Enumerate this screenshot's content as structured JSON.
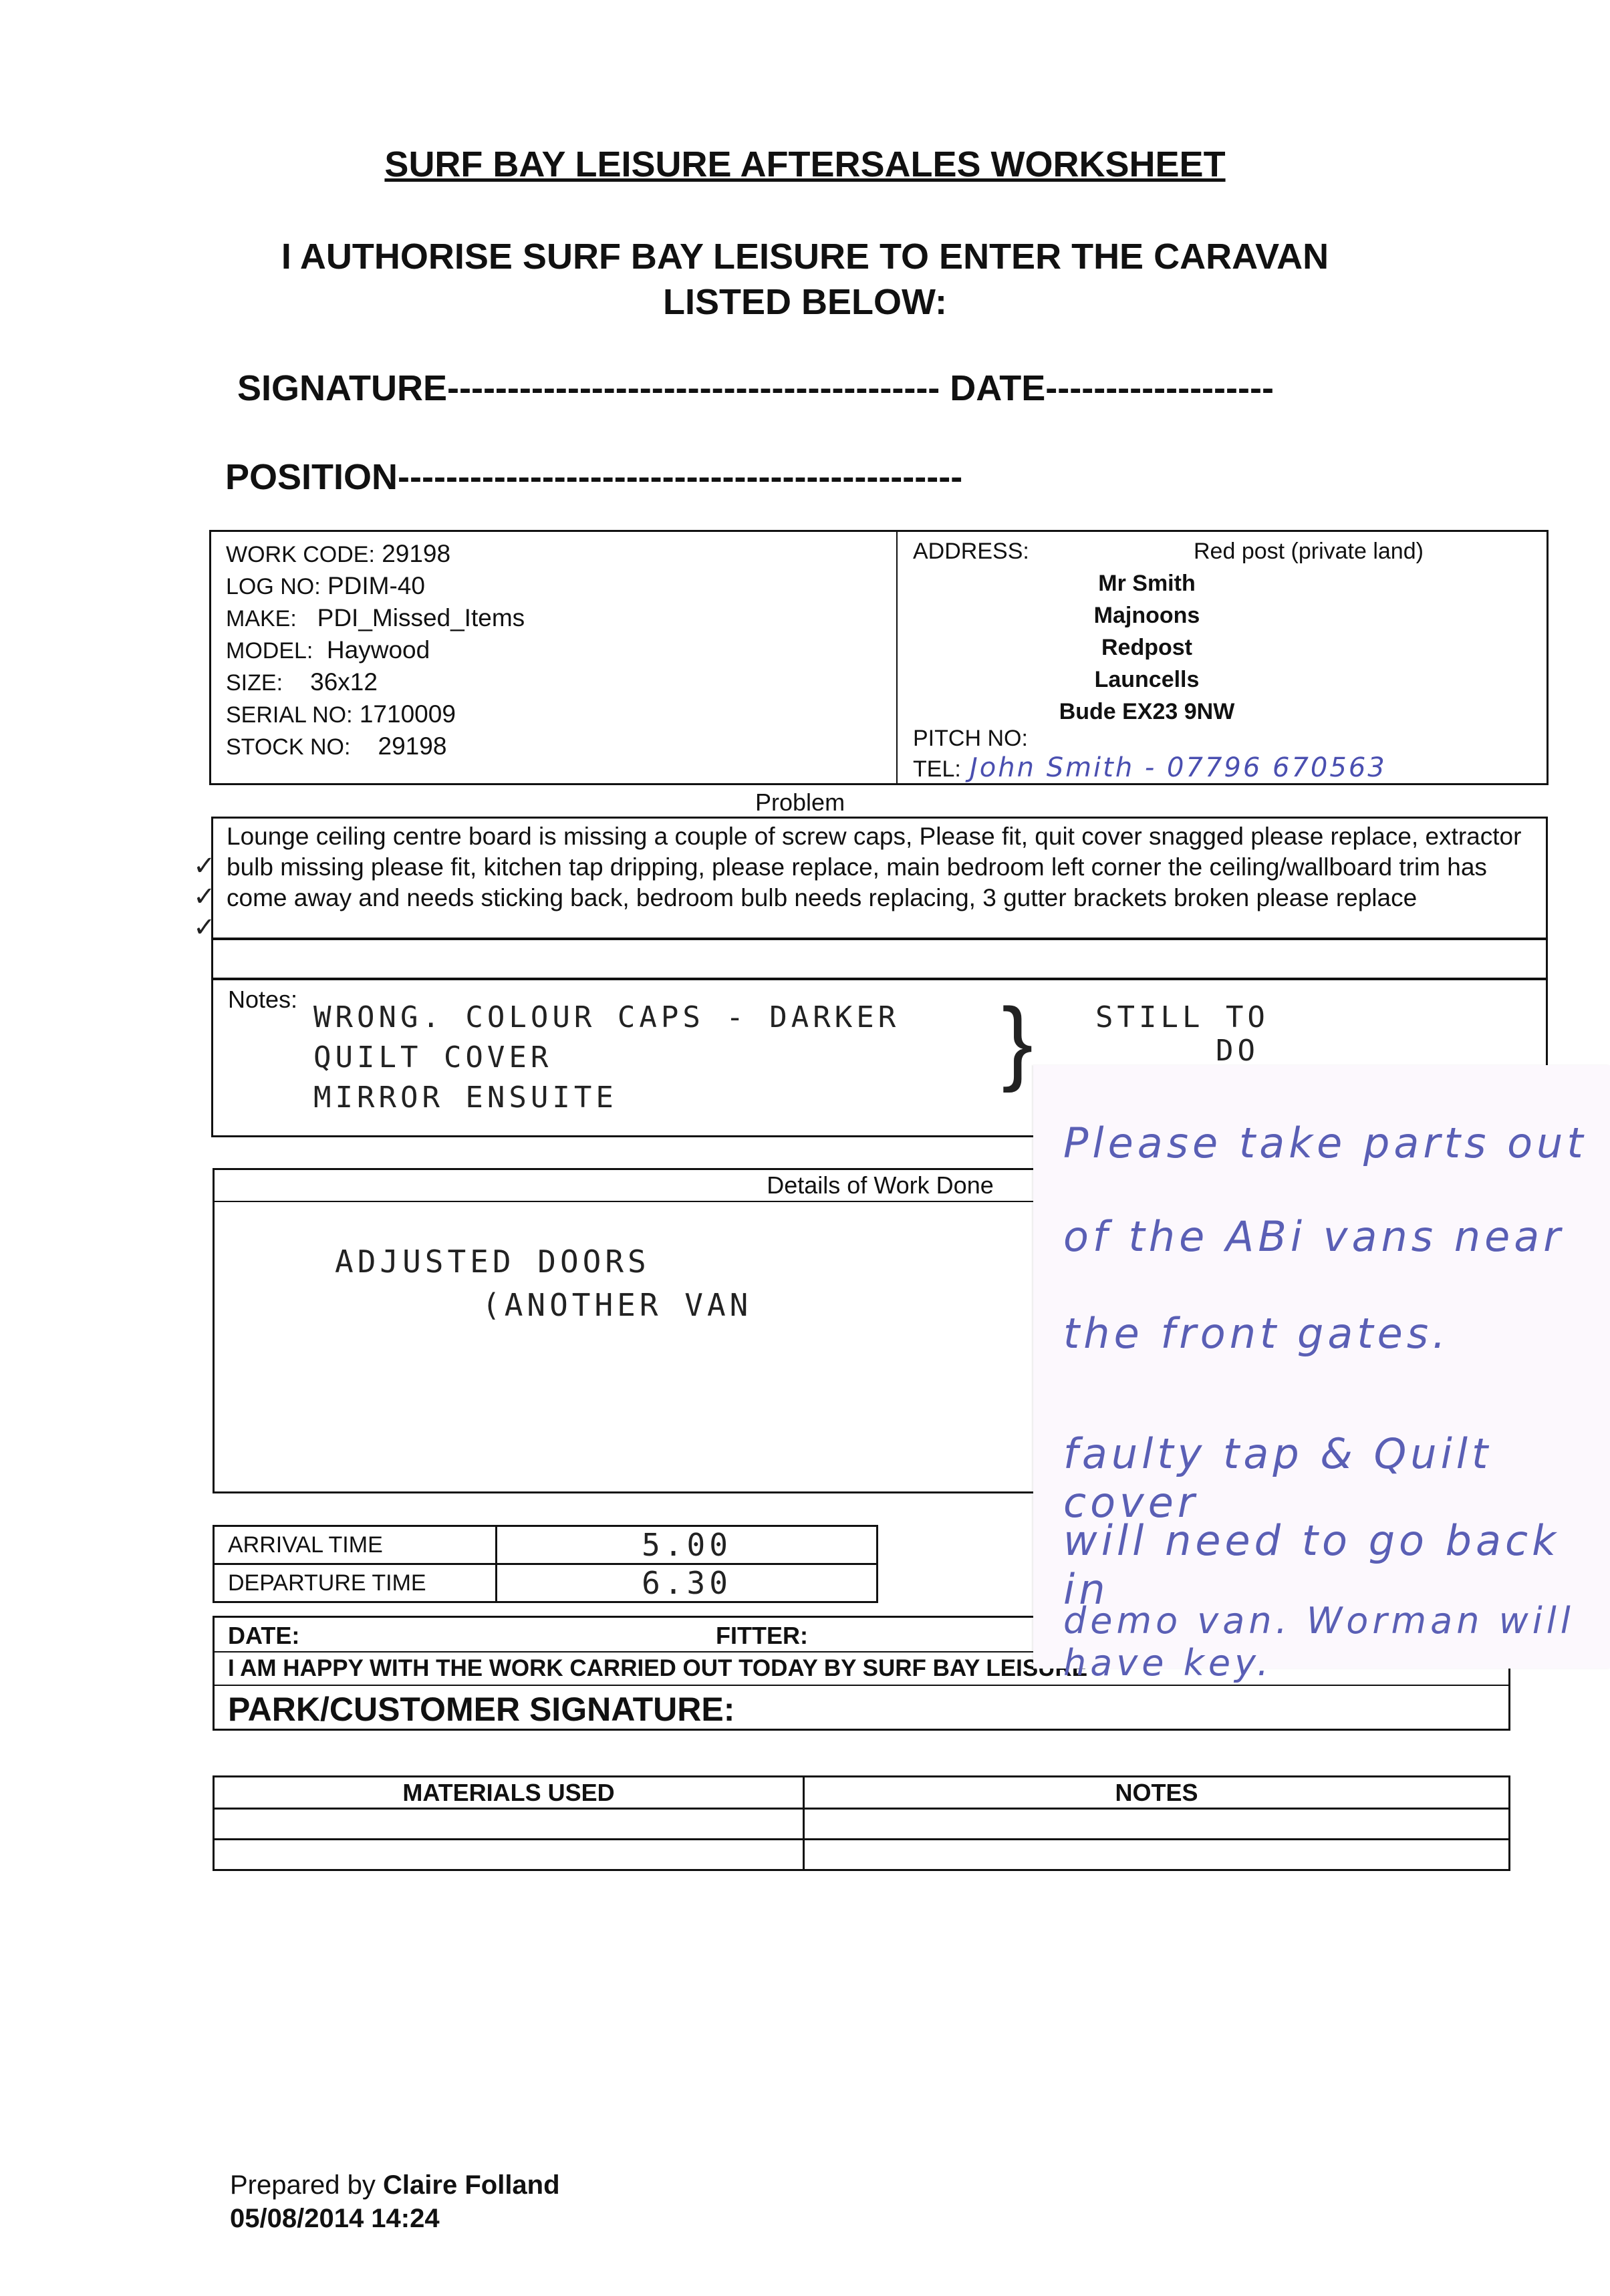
{
  "title": "SURF BAY LEISURE AFTERSALES WORKSHEET",
  "authorise": [
    "I AUTHORISE SURF BAY LEISURE TO ENTER THE CARAVAN",
    "LISTED BELOW:"
  ],
  "signature_line": "SIGNATURE----------------------------------------- DATE-------------------",
  "position_line": "POSITION-----------------------------------------------",
  "info": {
    "work_code_label": "WORK CODE:",
    "work_code": "29198",
    "log_no_label": "LOG NO:",
    "log_no": "PDIM-40",
    "make_label": "MAKE:",
    "make": "PDI_Missed_Items",
    "model_label": "MODEL:",
    "model": "Haywood",
    "size_label": "SIZE:",
    "size": "36x12",
    "serial_label": "SERIAL NO:",
    "serial": "1710009",
    "stock_label": "STOCK NO:",
    "stock": "29198",
    "address_label": "ADDRESS:",
    "address_note": "Red post (private land)",
    "address_lines": [
      "Mr Smith",
      "Majnoons",
      "Redpost",
      "Launcells",
      "Bude EX23 9NW"
    ],
    "pitch_label": "PITCH NO:",
    "tel_label": "TEL:",
    "tel_handwritten": "John Smith - 07796 670563"
  },
  "problem": {
    "label": "Problem",
    "text": "Lounge ceiling centre board is missing a couple of screw caps, Please fit, quit cover snagged please replace, extractor bulb missing please fit, kitchen tap dripping, please replace, main bedroom left corner the ceiling/wallboard trim has come away and needs sticking back, bedroom bulb needs replacing, 3 gutter brackets broken please replace"
  },
  "notes": {
    "label": "Notes:",
    "handwritten": [
      "WRONG. COLOUR CAPS - DARKER",
      "QUILT COVER",
      "MIRROR ENSUITE"
    ],
    "side": [
      "STILL TO",
      "DO"
    ]
  },
  "work_done": {
    "label": "Details of Work Done",
    "handwritten": [
      "ADJUSTED DOORS",
      "(ANOTHER VAN"
    ]
  },
  "times": {
    "arrival_label": "ARRIVAL TIME",
    "arrival": "5.00",
    "departure_label": "DEPARTURE TIME",
    "departure": "6.30"
  },
  "signoff": {
    "date_label": "DATE:",
    "fitter_label": "FITTER:",
    "happy": "I AM HAPPY WITH THE WORK CARRIED OUT TODAY BY SURF BAY LEISURE",
    "park_sig": "PARK/CUSTOMER SIGNATURE:"
  },
  "materials": {
    "col1": "MATERIALS USED",
    "col2": "NOTES"
  },
  "sticky_note": [
    "Please take parts out",
    "of the ABi vans near",
    "the front gates.",
    "faulty tap & Quilt cover",
    "will need to go back in",
    "demo van. Worman will have key."
  ],
  "prepared": {
    "prefix": "Prepared by",
    "name": "Claire Folland",
    "datetime": "05/08/2014 14:24"
  }
}
